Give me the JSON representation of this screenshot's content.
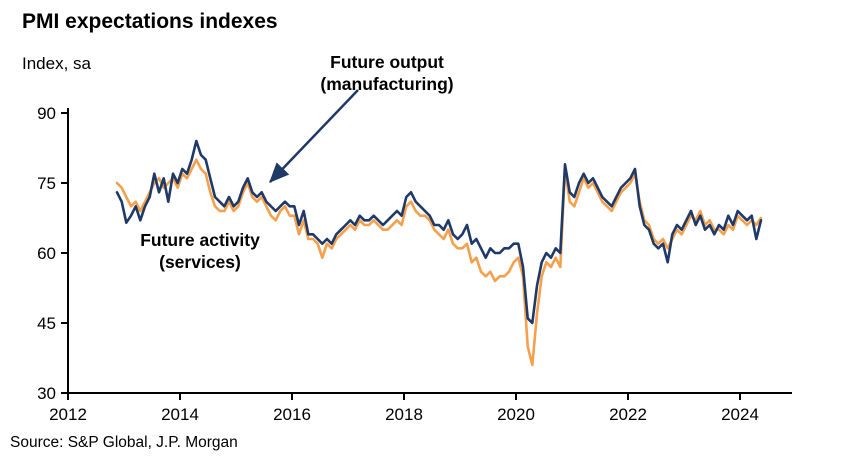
{
  "chart_data": {
    "type": "line",
    "title": "PMI expectations indexes",
    "ylabel": "Index, sa",
    "source": "Source: S&P Global, J.P. Morgan",
    "x_start": {
      "year": 2012,
      "month": 11
    },
    "frequency": "monthly",
    "xlim": [
      2012,
      2024.9
    ],
    "ylim": [
      30,
      90
    ],
    "x_ticks": [
      2012,
      2014,
      2016,
      2018,
      2020,
      2022,
      2024
    ],
    "y_ticks": [
      30,
      45,
      60,
      75,
      90
    ],
    "grid": false,
    "legend_position": "annotations-on-chart",
    "series": [
      {
        "name": "Future output (manufacturing)",
        "color": "#1f3a68",
        "values": [
          73,
          71,
          66.5,
          68,
          70,
          67,
          70,
          72,
          77,
          73,
          76,
          71,
          77,
          75,
          78,
          77,
          80,
          84,
          81,
          80,
          76,
          72,
          71,
          70,
          72,
          70,
          71,
          74,
          76,
          73,
          72,
          73,
          71,
          70,
          69,
          70,
          71,
          70,
          70,
          66,
          69,
          64,
          64,
          63,
          62,
          63,
          62,
          64,
          65,
          66,
          67,
          66,
          68,
          67,
          67,
          68,
          67,
          66,
          67,
          68,
          69,
          68,
          72,
          73,
          71,
          70,
          69,
          68,
          66,
          66,
          65,
          67,
          64,
          63,
          64,
          66,
          62,
          63,
          61,
          59,
          61,
          60,
          60,
          61,
          61,
          62,
          62,
          57,
          46,
          45,
          53,
          58,
          60,
          59,
          61,
          60,
          79,
          73,
          72,
          75,
          77,
          75,
          76,
          74,
          72,
          71,
          70,
          72,
          74,
          75,
          76,
          78,
          70,
          66,
          65,
          62,
          61,
          62,
          58,
          64,
          66,
          65,
          67,
          69,
          66,
          68,
          65,
          66,
          64,
          66,
          65,
          68,
          66,
          69,
          68,
          67,
          68,
          63,
          67
        ]
      },
      {
        "name": "Future activity (services)",
        "color": "#f5a04c",
        "values": [
          75,
          74,
          72,
          70,
          71,
          69,
          71,
          73,
          75,
          76,
          74,
          75,
          76,
          74,
          77,
          76,
          78,
          80,
          78,
          77,
          73,
          70,
          69,
          69,
          71,
          69,
          70,
          73,
          75,
          72,
          71,
          72,
          70,
          68,
          67,
          69,
          70,
          68,
          68,
          64,
          67,
          63,
          63,
          62,
          59,
          62,
          61,
          63,
          64,
          65,
          66,
          65,
          67,
          66,
          66,
          67,
          66,
          65,
          65,
          66,
          67,
          66,
          70,
          71,
          69,
          68,
          68,
          67,
          65,
          64,
          63,
          65,
          62,
          61,
          61,
          62,
          58,
          59,
          56,
          55,
          56,
          54,
          55,
          55,
          56,
          58,
          59,
          55,
          40,
          36,
          47,
          55,
          58,
          57,
          59,
          57,
          78,
          71,
          70,
          73,
          76,
          74,
          75,
          73,
          71,
          70,
          69,
          71,
          73,
          74,
          75,
          77,
          71,
          67,
          66,
          63,
          62,
          63,
          61,
          63,
          65,
          64,
          66,
          68,
          67,
          69,
          66,
          67,
          65,
          65,
          64,
          66,
          65,
          68,
          67,
          66,
          67,
          66,
          67.5
        ]
      }
    ]
  },
  "annotations": {
    "future_output": {
      "line1": "Future output",
      "line2": "(manufacturing)"
    },
    "future_activity": {
      "line1": "Future activity",
      "line2": "(services)"
    }
  },
  "colors": {
    "manufacturing_line": "#1f3a68",
    "services_line": "#f5a04c",
    "axis": "#000000"
  }
}
